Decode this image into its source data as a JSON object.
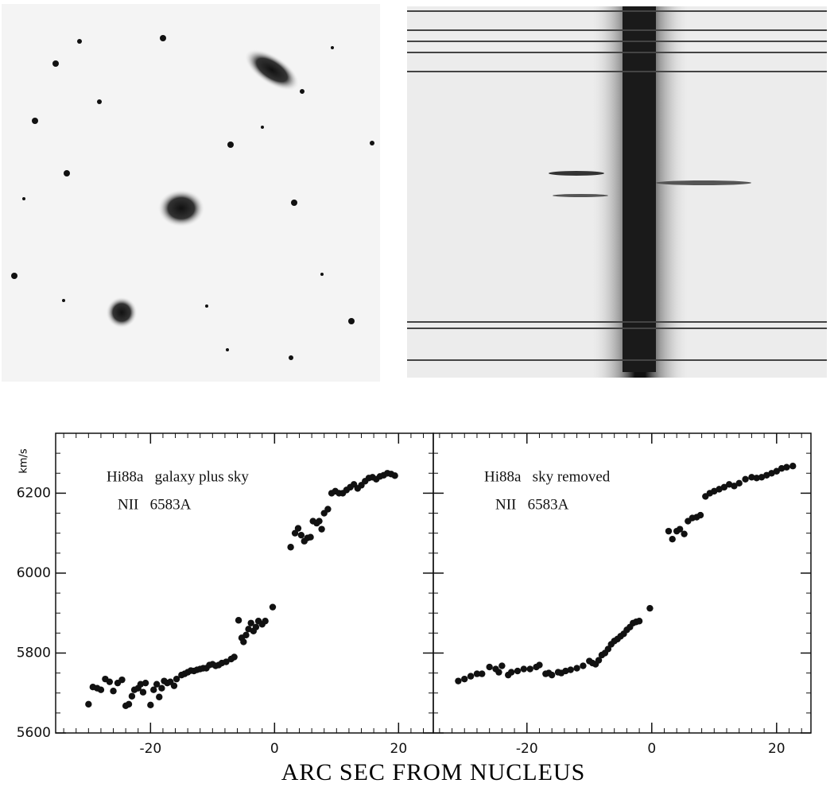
{
  "chart_data": [
    {
      "type": "scatter",
      "annotations": [
        "Hi88a   galaxy plus sky",
        "NII   6583A"
      ],
      "y_label": "km/s",
      "x_label": "ARC SEC FROM NUCLEUS",
      "xlim": [
        -35.3,
        25.6
      ],
      "ylim": [
        5600,
        6350
      ],
      "xticks": [
        -20,
        0,
        20
      ],
      "yticks": [
        5600,
        5800,
        6000,
        6200
      ],
      "color": "#111111",
      "x": [
        -30,
        -29.3,
        -28.6,
        -28,
        -27.3,
        -26.6,
        -26,
        -25.3,
        -24.6,
        -24,
        -23.5,
        -23,
        -22.6,
        -22,
        -21.6,
        -21.2,
        -20.8,
        -20,
        -19.5,
        -19,
        -18.6,
        -18.2,
        -17.8,
        -17.3,
        -16.8,
        -16.2,
        -15.8,
        -15,
        -14.5,
        -14,
        -13.5,
        -13,
        -12.5,
        -12,
        -11.5,
        -11,
        -10.5,
        -10,
        -9.5,
        -9,
        -8.5,
        -7.8,
        -7,
        -6.5,
        -5.8,
        -5.3,
        -5,
        -4.6,
        -4.2,
        -3.8,
        -3.4,
        -3,
        -2.6,
        -2,
        -1.5,
        -0.3,
        2.6,
        3.3,
        3.8,
        4.3,
        4.8,
        5.3,
        5.8,
        6.2,
        6.8,
        7.2,
        7.6,
        8,
        8.6,
        9.2,
        9.8,
        10.4,
        11,
        11.6,
        12.2,
        12.8,
        13.4,
        14,
        14.6,
        15.2,
        15.8,
        16.4,
        17,
        17.6,
        18.2,
        18.8,
        19.4
      ],
      "values": [
        5672,
        5715,
        5712,
        5708,
        5735,
        5728,
        5705,
        5725,
        5733,
        5668,
        5672,
        5692,
        5708,
        5712,
        5722,
        5702,
        5725,
        5670,
        5708,
        5722,
        5690,
        5712,
        5730,
        5725,
        5728,
        5718,
        5735,
        5745,
        5748,
        5752,
        5756,
        5755,
        5758,
        5760,
        5762,
        5762,
        5770,
        5772,
        5768,
        5770,
        5775,
        5778,
        5785,
        5790,
        5882,
        5838,
        5828,
        5845,
        5860,
        5875,
        5855,
        5865,
        5880,
        5872,
        5880,
        5915,
        6065,
        6100,
        6112,
        6095,
        6080,
        6088,
        6090,
        6130,
        6125,
        6130,
        6110,
        6150,
        6160,
        6200,
        6205,
        6200,
        6200,
        6208,
        6215,
        6222,
        6212,
        6220,
        6230,
        6238,
        6240,
        6235,
        6242,
        6245,
        6250,
        6248,
        6244
      ]
    },
    {
      "type": "scatter",
      "annotations": [
        "Hi88a   sky removed",
        "NII   6583A"
      ],
      "xlim": [
        -35,
        25.5
      ],
      "ylim": [
        5600,
        6350
      ],
      "xticks": [
        -20,
        0,
        20
      ],
      "yticks": [
        5600,
        5800,
        6000,
        6200
      ],
      "color": "#111111",
      "x": [
        -31,
        -30,
        -29,
        -28,
        -27.2,
        -26,
        -25,
        -24.5,
        -24,
        -23,
        -22.5,
        -21.5,
        -20.5,
        -19.5,
        -18.5,
        -18,
        -17,
        -16.5,
        -16,
        -15,
        -14.5,
        -13.8,
        -13,
        -12,
        -11,
        -10,
        -9.5,
        -9,
        -8.5,
        -8,
        -7.5,
        -7,
        -6.5,
        -6,
        -5.5,
        -5,
        -4.5,
        -4,
        -3.5,
        -3,
        -2.5,
        -2,
        -0.3,
        2.7,
        3.3,
        4,
        4.5,
        5.2,
        5.8,
        6.5,
        7.2,
        7.8,
        8.6,
        9.3,
        10,
        10.8,
        11.6,
        12.4,
        13.2,
        14,
        15,
        16,
        16.8,
        17.6,
        18.4,
        19.2,
        20,
        20.8,
        21.6,
        22.6
      ],
      "values": [
        5730,
        5735,
        5742,
        5748,
        5748,
        5765,
        5760,
        5752,
        5768,
        5745,
        5752,
        5755,
        5760,
        5760,
        5765,
        5770,
        5748,
        5750,
        5745,
        5752,
        5750,
        5755,
        5758,
        5762,
        5768,
        5780,
        5775,
        5772,
        5782,
        5795,
        5800,
        5810,
        5822,
        5830,
        5835,
        5842,
        5848,
        5858,
        5865,
        5875,
        5878,
        5880,
        5912,
        6105,
        6085,
        6105,
        6110,
        6098,
        6130,
        6138,
        6140,
        6145,
        6192,
        6200,
        6205,
        6210,
        6215,
        6222,
        6218,
        6225,
        6235,
        6240,
        6238,
        6240,
        6245,
        6250,
        6255,
        6262,
        6265,
        6268
      ]
    }
  ]
}
